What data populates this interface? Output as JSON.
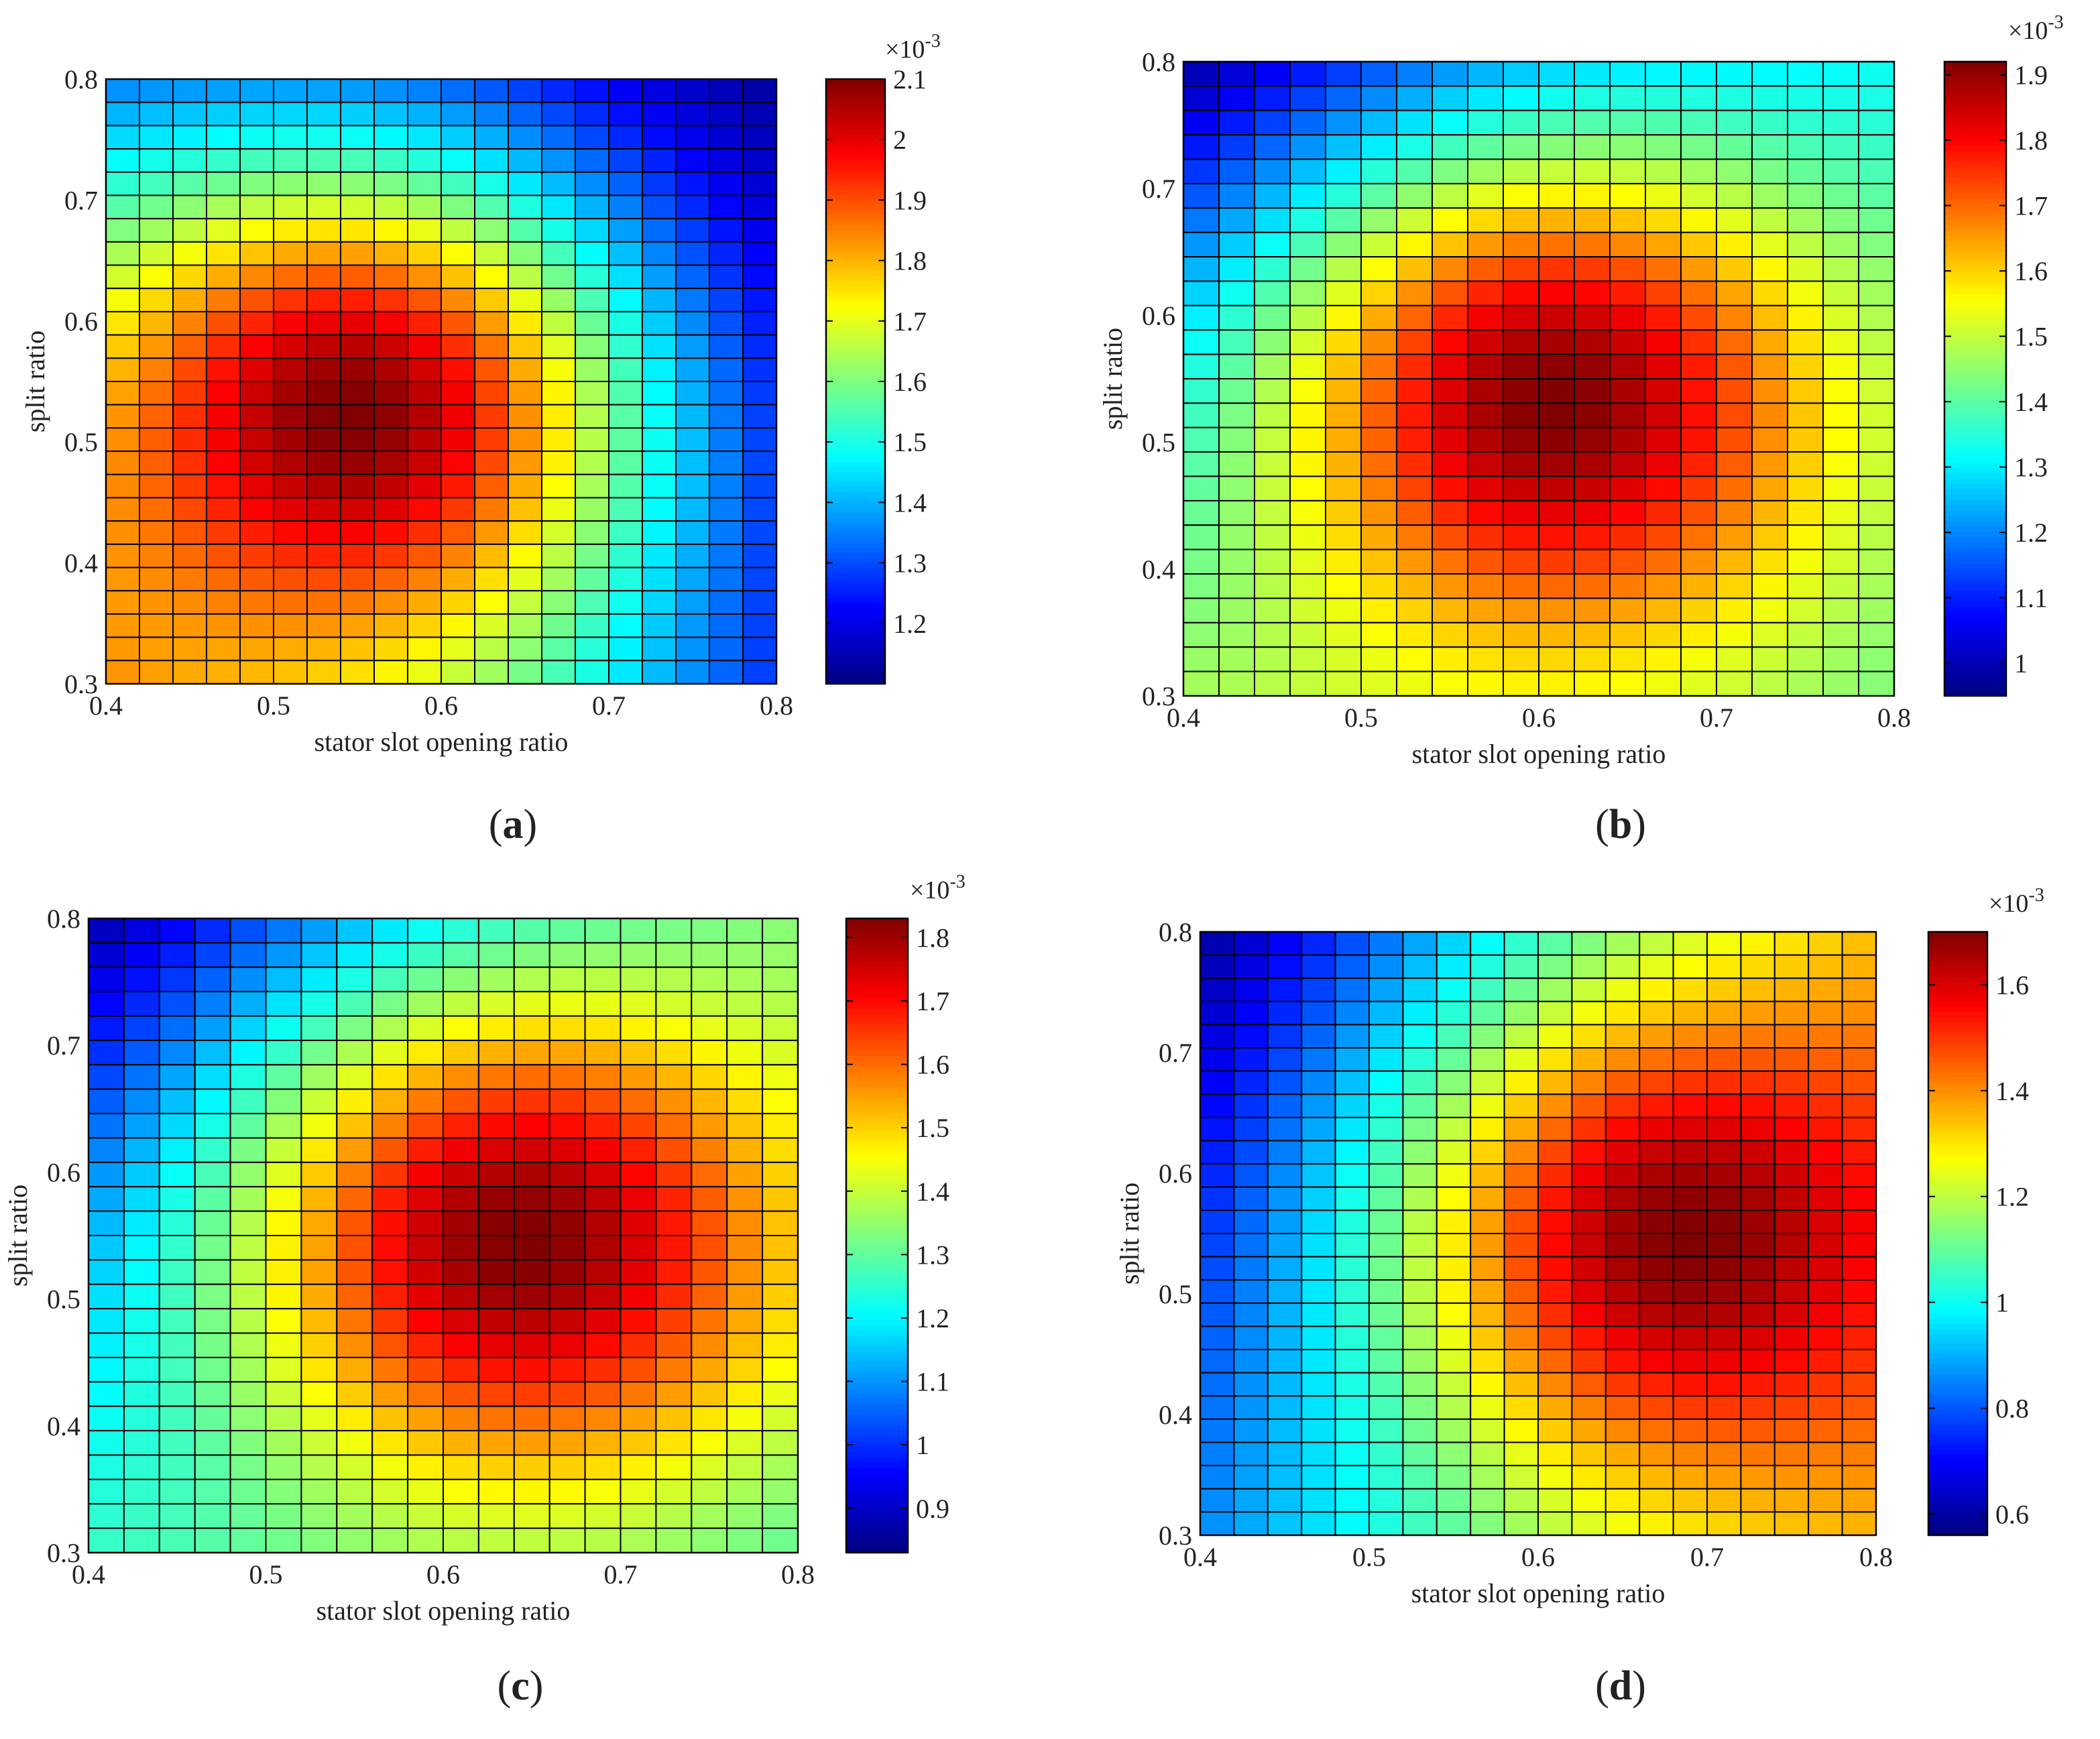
{
  "chart_data": [
    {
      "type": "heatmap",
      "panel": "a",
      "caption": "(a)",
      "xlabel": "stator slot opening ratio",
      "ylabel": "split ratio",
      "xlim": [
        0.4,
        0.8
      ],
      "ylim": [
        0.3,
        0.8
      ],
      "xticks": [
        "0.4",
        "0.5",
        "0.6",
        "0.7",
        "0.8"
      ],
      "yticks": [
        "0.3",
        "0.4",
        "0.5",
        "0.6",
        "0.7",
        "0.8"
      ],
      "grid_cols": 20,
      "grid_rows": 26,
      "colormap": "jet",
      "colorbar": {
        "min": 1.1,
        "max": 2.1,
        "ticks": [
          "1.2",
          "1.3",
          "1.4",
          "1.5",
          "1.6",
          "1.7",
          "1.8",
          "1.9",
          "2",
          "2.1"
        ],
        "exponent_label": "×10",
        "exponent": "-3"
      },
      "peak": {
        "x": 0.545,
        "y": 0.52
      },
      "values_at_corners": {
        "top_left": 1.3,
        "top_right": 1.12,
        "bottom_left": 1.8,
        "bottom_right": 1.25
      }
    },
    {
      "type": "heatmap",
      "panel": "b",
      "caption": "(b)",
      "xlabel": "stator slot opening ratio",
      "ylabel": "split ratio",
      "xlim": [
        0.4,
        0.8
      ],
      "ylim": [
        0.3,
        0.8
      ],
      "xticks": [
        "0.4",
        "0.5",
        "0.6",
        "0.7",
        "0.8"
      ],
      "yticks": [
        "0.3",
        "0.4",
        "0.5",
        "0.6",
        "0.7",
        "0.8"
      ],
      "grid_cols": 20,
      "grid_rows": 26,
      "colormap": "jet",
      "colorbar": {
        "min": 0.95,
        "max": 1.92,
        "ticks": [
          "1",
          "1.1",
          "1.2",
          "1.3",
          "1.4",
          "1.5",
          "1.6",
          "1.7",
          "1.8",
          "1.9"
        ],
        "exponent_label": "×10",
        "exponent": "-3"
      },
      "peak": {
        "x": 0.61,
        "y": 0.53
      },
      "values_at_corners": {
        "top_left": 0.95,
        "top_right": 1.3,
        "bottom_left": 1.45,
        "bottom_right": 1.4
      }
    },
    {
      "type": "heatmap",
      "panel": "c",
      "caption": "(c)",
      "xlabel": "stator slot opening ratio",
      "ylabel": "split ratio",
      "xlim": [
        0.4,
        0.8
      ],
      "ylim": [
        0.3,
        0.8
      ],
      "xticks": [
        "0.4",
        "0.5",
        "0.6",
        "0.7",
        "0.8"
      ],
      "yticks": [
        "0.3",
        "0.4",
        "0.5",
        "0.6",
        "0.7",
        "0.8"
      ],
      "grid_cols": 20,
      "grid_rows": 26,
      "colormap": "jet",
      "colorbar": {
        "min": 0.83,
        "max": 1.83,
        "ticks": [
          "0.9",
          "1",
          "1.1",
          "1.2",
          "1.3",
          "1.4",
          "1.5",
          "1.6",
          "1.7",
          "1.8"
        ],
        "exponent_label": "×10",
        "exponent": "-3"
      },
      "peak": {
        "x": 0.645,
        "y": 0.545
      },
      "values_at_corners": {
        "top_left": 0.85,
        "top_right": 1.3,
        "bottom_left": 1.25,
        "bottom_right": 1.25
      }
    },
    {
      "type": "heatmap",
      "panel": "d",
      "caption": "(d)",
      "xlabel": "stator slot opening ratio",
      "ylabel": "split ratio",
      "xlim": [
        0.4,
        0.8
      ],
      "ylim": [
        0.3,
        0.8
      ],
      "xticks": [
        "0.4",
        "0.5",
        "0.6",
        "0.7",
        "0.8"
      ],
      "yticks": [
        "0.3",
        "0.4",
        "0.5",
        "0.6",
        "0.7",
        "0.8"
      ],
      "grid_cols": 20,
      "grid_rows": 26,
      "colormap": "jet",
      "colorbar": {
        "min": 0.56,
        "max": 1.7,
        "ticks": [
          "0.6",
          "0.8",
          "1",
          "1.2",
          "1.4",
          "1.6"
        ],
        "exponent_label": "×10",
        "exponent": "-3"
      },
      "peak": {
        "x": 0.69,
        "y": 0.545
      },
      "values_at_corners": {
        "top_left": 0.58,
        "top_right": 1.3,
        "bottom_left": 0.85,
        "bottom_right": 1.3
      }
    }
  ]
}
